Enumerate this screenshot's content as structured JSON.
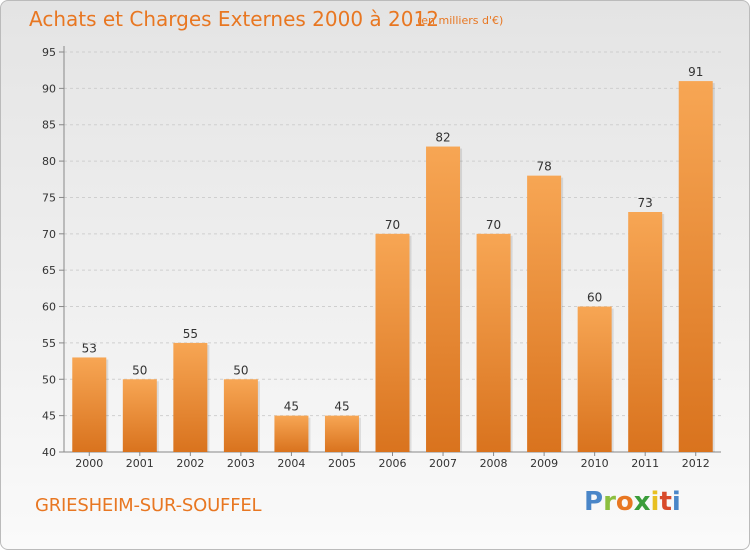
{
  "chart_data": {
    "type": "bar",
    "title": "Achats et Charges Externes 2000 à 2012",
    "subtitle": "(en milliers d'€)",
    "categories": [
      "2000",
      "2001",
      "2002",
      "2003",
      "2004",
      "2005",
      "2006",
      "2007",
      "2008",
      "2009",
      "2010",
      "2011",
      "2012"
    ],
    "values": [
      53,
      50,
      55,
      50,
      45,
      45,
      70,
      82,
      70,
      78,
      60,
      73,
      91
    ],
    "ylim": [
      40,
      95
    ],
    "yticks": [
      40,
      45,
      50,
      55,
      60,
      65,
      70,
      75,
      80,
      85,
      90,
      95
    ],
    "grid": true,
    "bar_color_top": "#f7a654",
    "bar_color_bottom": "#d9731e"
  },
  "footer": {
    "city": "GRIESHEIM-SUR-SOUFFEL",
    "logo_letters": [
      "P",
      "r",
      "o",
      "x",
      "i",
      "t",
      "i"
    ],
    "logo_colors": [
      "#4a86c8",
      "#8cbf3f",
      "#e87722",
      "#3a9d3a",
      "#e8c020",
      "#d84a2a",
      "#4a86c8"
    ]
  },
  "colors": {
    "accent": "#e87722",
    "axis_text": "#333333",
    "grid": "#cccccc"
  }
}
